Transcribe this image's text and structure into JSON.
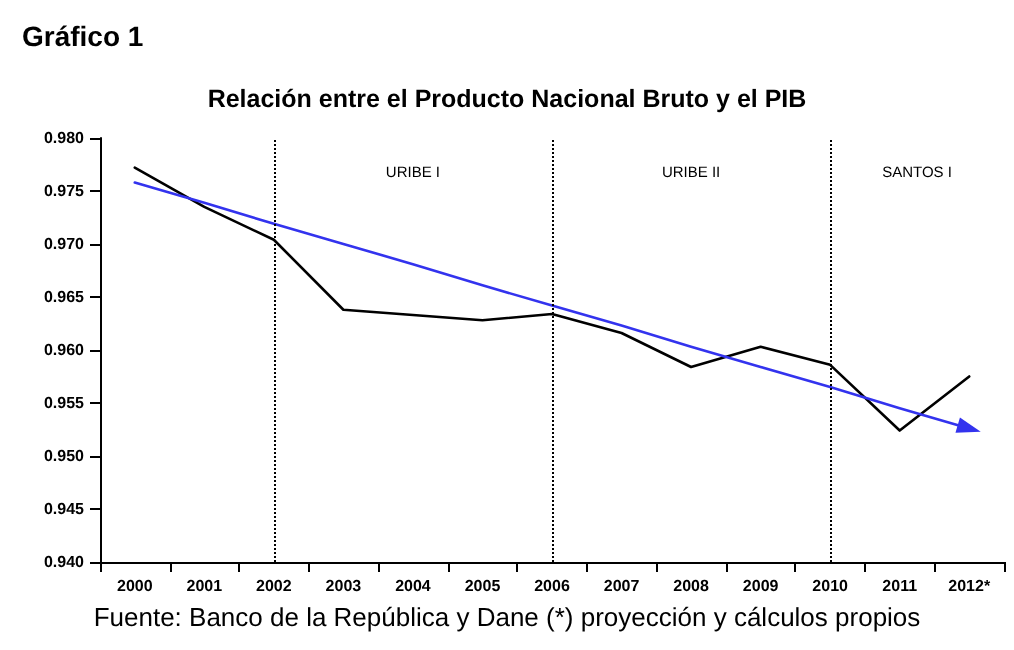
{
  "chart_data": {
    "type": "line",
    "title": "Gráfico 1",
    "subtitle": "Relación entre el Producto Nacional Bruto y el PIB",
    "categories": [
      "2000",
      "2001",
      "2002",
      "2003",
      "2004",
      "2005",
      "2006",
      "2007",
      "2008",
      "2009",
      "2010",
      "2011",
      "2012*"
    ],
    "series": [
      {
        "color": "#000000",
        "values": [
          0.9772,
          0.9735,
          0.9704,
          0.9638,
          0.9633,
          0.9628,
          0.9634,
          0.9616,
          0.9584,
          0.9603,
          0.9586,
          0.9524,
          0.9575
        ]
      },
      {
        "color": "#3333ee",
        "values": [
          0.9758,
          0.9739,
          0.9719,
          0.97,
          0.9681,
          0.9661,
          0.9642,
          0.9623,
          0.9603,
          0.9584,
          0.9565,
          0.9545,
          0.9526
        ]
      }
    ],
    "ylim": [
      0.94,
      0.98
    ],
    "yticks": [
      {
        "value": 0.94,
        "label": "0.940"
      },
      {
        "value": 0.945,
        "label": "0.945"
      },
      {
        "value": 0.95,
        "label": "0.950"
      },
      {
        "value": 0.955,
        "label": "0.955"
      },
      {
        "value": 0.96,
        "label": "0.960"
      },
      {
        "value": 0.965,
        "label": "0.965"
      },
      {
        "value": 0.97,
        "label": "0.970"
      },
      {
        "value": 0.975,
        "label": "0.975"
      },
      {
        "value": 0.98,
        "label": "0.980"
      }
    ],
    "ref_lines": [
      {
        "axis": "x",
        "value": "2002",
        "line_style": "dotted",
        "color": "#000000"
      },
      {
        "axis": "x",
        "value": "2006",
        "line_style": "dotted",
        "color": "#000000"
      },
      {
        "axis": "x",
        "value": "2010",
        "line_style": "dotted",
        "color": "#000000"
      }
    ],
    "annotations": [
      "URIBE I",
      "URIBE II",
      "SANTOS I",
      "Fuente: Banco de la República y Dane (*) proyección y cálculos propios"
    ],
    "grid": false,
    "line_style": "solid"
  }
}
